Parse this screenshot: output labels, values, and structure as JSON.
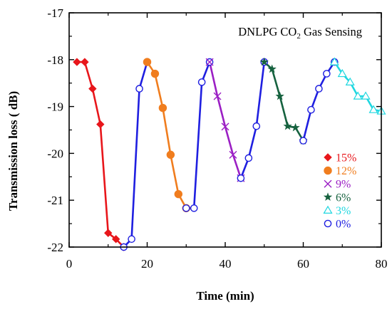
{
  "chart_data": {
    "type": "line",
    "title": "DNLPG CO",
    "title_subscript": "2",
    "title_suffix": " Gas Sensing",
    "xlabel": "Time (min)",
    "ylabel": "Transmission loss ( dB)",
    "xlim": [
      0,
      80
    ],
    "ylim": [
      -22,
      -17
    ],
    "xticks": [
      0,
      20,
      40,
      60,
      80
    ],
    "yticks": [
      -22,
      -21,
      -20,
      -19,
      -18,
      -17
    ],
    "grid": false,
    "legend_position": "bottom-right",
    "series": [
      {
        "name": "15%",
        "color": "#e8161b",
        "marker": "diamond",
        "points": [
          [
            2,
            -18.05
          ],
          [
            4,
            -18.05
          ],
          [
            6,
            -18.62
          ],
          [
            8,
            -19.38
          ],
          [
            10,
            -21.7
          ],
          [
            12,
            -21.83
          ],
          [
            14,
            -22.0
          ]
        ]
      },
      {
        "name": "0%",
        "color": "#1f1fe0",
        "marker": "circle",
        "points": [
          [
            14,
            -22.0
          ],
          [
            16,
            -21.83
          ],
          [
            18,
            -18.62
          ],
          [
            20,
            -18.05
          ]
        ]
      },
      {
        "name": "12%",
        "color": "#f07d1e",
        "marker": "filled-circle",
        "points": [
          [
            20,
            -18.05
          ],
          [
            22,
            -18.3
          ],
          [
            24,
            -19.03
          ],
          [
            26,
            -20.03
          ],
          [
            28,
            -20.87
          ],
          [
            30,
            -21.17
          ]
        ]
      },
      {
        "name": "0%",
        "color": "#1f1fe0",
        "marker": "circle",
        "points": [
          [
            30,
            -21.17
          ],
          [
            32,
            -21.17
          ],
          [
            34,
            -18.48
          ],
          [
            36,
            -18.05
          ]
        ]
      },
      {
        "name": "9%",
        "color": "#9b1fc4",
        "marker": "x",
        "points": [
          [
            36,
            -18.05
          ],
          [
            38,
            -18.78
          ],
          [
            40,
            -19.43
          ],
          [
            42,
            -20.03
          ],
          [
            44,
            -20.53
          ]
        ]
      },
      {
        "name": "0%",
        "color": "#1f1fe0",
        "marker": "circle",
        "points": [
          [
            44,
            -20.53
          ],
          [
            46,
            -20.1
          ],
          [
            48,
            -19.42
          ],
          [
            50,
            -18.05
          ]
        ]
      },
      {
        "name": "6%",
        "color": "#16623f",
        "marker": "star",
        "points": [
          [
            50,
            -18.05
          ],
          [
            52,
            -18.2
          ],
          [
            54,
            -18.78
          ],
          [
            56,
            -19.42
          ],
          [
            58,
            -19.45
          ],
          [
            60,
            -19.73
          ]
        ]
      },
      {
        "name": "0%",
        "color": "#1f1fe0",
        "marker": "circle",
        "points": [
          [
            60,
            -19.73
          ],
          [
            62,
            -19.07
          ],
          [
            64,
            -18.62
          ],
          [
            66,
            -18.3
          ],
          [
            68,
            -18.05
          ]
        ]
      },
      {
        "name": "3%",
        "color": "#1fd7e0",
        "marker": "triangle",
        "points": [
          [
            68,
            -18.05
          ],
          [
            70,
            -18.3
          ],
          [
            72,
            -18.48
          ],
          [
            74,
            -18.78
          ],
          [
            76,
            -18.78
          ],
          [
            78,
            -19.07
          ],
          [
            80,
            -19.1
          ]
        ]
      }
    ],
    "legend": [
      {
        "label": "15%",
        "color": "#e8161b",
        "marker": "diamond"
      },
      {
        "label": "12%",
        "color": "#f07d1e",
        "marker": "filled-circle"
      },
      {
        "label": "9%",
        "color": "#9b1fc4",
        "marker": "x"
      },
      {
        "label": "6%",
        "color": "#16623f",
        "marker": "star"
      },
      {
        "label": "3%",
        "color": "#1fd7e0",
        "marker": "triangle"
      },
      {
        "label": "0%",
        "color": "#1f1fe0",
        "marker": "circle"
      }
    ]
  }
}
